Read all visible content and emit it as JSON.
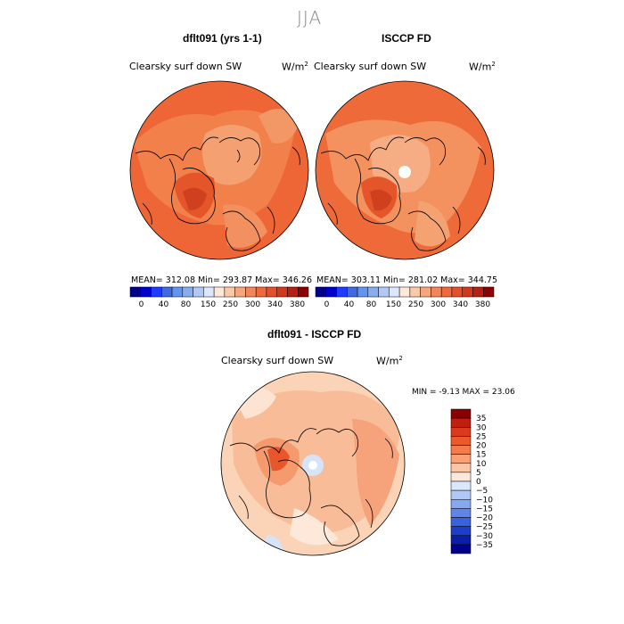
{
  "season": "JJA",
  "panels": [
    {
      "title": "dflt091 (yrs 1-1)",
      "field": "Clearsky surf down SW",
      "units": "W/m",
      "units_sup": "2",
      "stats": "MEAN= 312.08   Min= 293.87   Max= 346.26"
    },
    {
      "title": "ISCCP FD",
      "field": "Clearsky surf down SW",
      "units": "W/m",
      "units_sup": "2",
      "stats": "MEAN= 303.11   Min= 281.02   Max= 344.75"
    }
  ],
  "abs_colorbar": {
    "labels": [
      "0",
      "40",
      "80",
      "150",
      "250",
      "300",
      "340",
      "380"
    ],
    "colors": [
      "#00008b",
      "#0000cd",
      "#1e3cff",
      "#4169e1",
      "#6495ed",
      "#87acf0",
      "#b0c8f5",
      "#dbe7fb",
      "#fde9dc",
      "#fbc8a8",
      "#f7a57c",
      "#f3855a",
      "#ee6a3c",
      "#e5502a",
      "#d2381c",
      "#b52212",
      "#8b0000"
    ]
  },
  "diff_panel": {
    "title": "dflt091 - ISCCP FD",
    "field": "Clearsky surf down SW",
    "units": "W/m",
    "units_sup": "2",
    "minmax": "MIN =   -9.13  MAX =   23.06"
  },
  "diff_colorbar": {
    "labels": [
      "35",
      "30",
      "25",
      "20",
      "15",
      "10",
      "5",
      "0",
      "−5",
      "−10",
      "−15",
      "−20",
      "−25",
      "−30",
      "−35"
    ],
    "colors": [
      "#8b0000",
      "#c01e0e",
      "#dc3a1e",
      "#ec5a2c",
      "#f47c4c",
      "#f8a078",
      "#fbc5a6",
      "#fde7d8",
      "#dbe7fb",
      "#b0c8f5",
      "#87a8ef",
      "#5f86e6",
      "#3a62dc",
      "#1c3ec8",
      "#0a1ea8",
      "#00008b"
    ]
  },
  "colors": {
    "ocean_abs": "#f06a38",
    "land_abs": "#f39a6a",
    "diff_base": "#fbc9a9",
    "outline": "#000000"
  }
}
